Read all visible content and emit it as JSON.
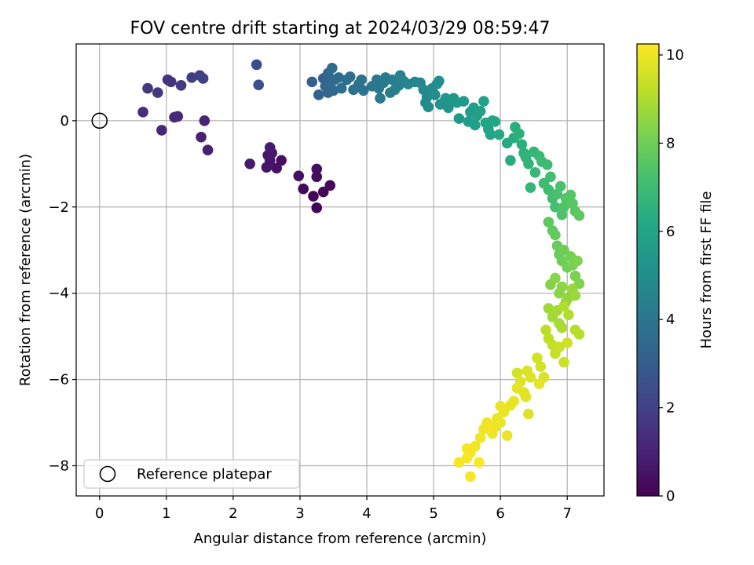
{
  "chart_data": {
    "type": "scatter",
    "title": "FOV centre drift starting at 2024/03/29 08:59:47",
    "xlabel": "Angular distance from reference (arcmin)",
    "ylabel": "Rotation from reference (arcmin)",
    "xlim": [
      -0.35,
      7.55
    ],
    "ylim": [
      -8.7,
      1.78
    ],
    "xticks": [
      0,
      1,
      2,
      3,
      4,
      5,
      6,
      7
    ],
    "xtick_labels": [
      "0",
      "1",
      "2",
      "3",
      "4",
      "5",
      "6",
      "7"
    ],
    "yticks": [
      -8,
      -6,
      -4,
      -2,
      0
    ],
    "ytick_labels": [
      "−8",
      "−6",
      "−4",
      "−2",
      "0"
    ],
    "grid": true,
    "legend": {
      "position": "lower-left",
      "entries": [
        "Reference platepar"
      ]
    },
    "reference_point": {
      "x": 0,
      "y": 0
    },
    "colorbar": {
      "label": "Hours from first FF file",
      "colormap": "viridis",
      "range": [
        0,
        10.25
      ],
      "ticks": [
        0,
        2,
        4,
        6,
        8,
        10
      ],
      "tick_labels": [
        "0",
        "2",
        "4",
        "6",
        "8",
        "10"
      ]
    },
    "points": [
      [
        3.25,
        -2.02,
        0.05
      ],
      [
        3.2,
        -1.75,
        0.1
      ],
      [
        3.35,
        -1.65,
        0.15
      ],
      [
        3.45,
        -1.5,
        0.2
      ],
      [
        3.05,
        -1.58,
        0.25
      ],
      [
        3.25,
        -1.3,
        0.3
      ],
      [
        3.25,
        -1.12,
        0.35
      ],
      [
        2.98,
        -1.28,
        0.4
      ],
      [
        2.72,
        -0.92,
        0.45
      ],
      [
        2.65,
        -1.1,
        0.5
      ],
      [
        2.5,
        -1.08,
        0.55
      ],
      [
        2.55,
        -0.92,
        0.6
      ],
      [
        2.52,
        -0.8,
        0.65
      ],
      [
        2.58,
        -0.75,
        0.7
      ],
      [
        2.55,
        -0.62,
        0.75
      ],
      [
        2.25,
        -1.0,
        0.8
      ],
      [
        1.62,
        -0.68,
        0.9
      ],
      [
        1.52,
        -0.38,
        0.95
      ],
      [
        1.57,
        0.0,
        1.05
      ],
      [
        0.93,
        -0.22,
        1.1
      ],
      [
        1.17,
        0.1,
        1.2
      ],
      [
        1.12,
        0.08,
        1.25
      ],
      [
        0.65,
        0.2,
        1.35
      ],
      [
        1.02,
        0.95,
        1.5
      ],
      [
        1.07,
        0.9,
        1.55
      ],
      [
        0.72,
        0.75,
        1.6
      ],
      [
        0.87,
        0.65,
        1.65
      ],
      [
        1.22,
        0.82,
        1.75
      ],
      [
        1.38,
        1.0,
        1.85
      ],
      [
        1.5,
        1.05,
        1.95
      ],
      [
        1.55,
        0.98,
        2.0
      ],
      [
        2.35,
        1.3,
        2.4
      ],
      [
        2.38,
        0.83,
        2.5
      ],
      [
        3.18,
        0.9,
        3.1
      ],
      [
        3.35,
        0.98,
        3.2
      ],
      [
        3.28,
        0.6,
        3.3
      ],
      [
        3.42,
        0.65,
        3.35
      ],
      [
        3.38,
        0.8,
        3.4
      ],
      [
        3.45,
        0.88,
        3.45
      ],
      [
        3.5,
        0.7,
        3.5
      ],
      [
        3.42,
        1.1,
        3.5
      ],
      [
        3.52,
        0.95,
        3.55
      ],
      [
        3.48,
        1.22,
        3.6
      ],
      [
        3.62,
        0.75,
        3.6
      ],
      [
        3.58,
        1.0,
        3.65
      ],
      [
        3.7,
        0.95,
        3.7
      ],
      [
        3.75,
        1.02,
        3.75
      ],
      [
        3.8,
        0.72,
        3.8
      ],
      [
        3.88,
        0.85,
        3.85
      ],
      [
        3.95,
        0.7,
        3.9
      ],
      [
        3.92,
        0.95,
        3.95
      ],
      [
        4.08,
        0.8,
        4.0
      ],
      [
        4.15,
        0.95,
        4.05
      ],
      [
        4.18,
        0.75,
        4.1
      ],
      [
        4.2,
        0.52,
        4.15
      ],
      [
        4.25,
        0.88,
        4.2
      ],
      [
        4.28,
        1.0,
        4.25
      ],
      [
        4.35,
        0.65,
        4.3
      ],
      [
        4.38,
        0.95,
        4.35
      ],
      [
        4.42,
        0.72,
        4.4
      ],
      [
        4.48,
        0.82,
        4.45
      ],
      [
        4.5,
        1.05,
        4.5
      ],
      [
        4.55,
        0.92,
        4.55
      ],
      [
        4.62,
        0.85,
        4.6
      ],
      [
        4.72,
        0.9,
        4.65
      ],
      [
        4.8,
        0.88,
        4.7
      ],
      [
        4.85,
        0.72,
        4.75
      ],
      [
        4.88,
        0.42,
        4.8
      ],
      [
        4.9,
        0.55,
        4.85
      ],
      [
        4.92,
        0.32,
        4.9
      ],
      [
        4.98,
        0.75,
        4.95
      ],
      [
        5.02,
        0.6,
        5.0
      ],
      [
        5.05,
        0.85,
        5.05
      ],
      [
        5.08,
        0.92,
        5.1
      ],
      [
        5.1,
        0.38,
        5.15
      ],
      [
        5.15,
        0.42,
        5.2
      ],
      [
        5.18,
        0.52,
        5.25
      ],
      [
        5.22,
        0.3,
        5.3
      ],
      [
        5.25,
        0.48,
        5.35
      ],
      [
        5.3,
        0.52,
        5.4
      ],
      [
        5.35,
        0.42,
        5.45
      ],
      [
        5.38,
        0.05,
        5.5
      ],
      [
        5.45,
        0.45,
        5.55
      ],
      [
        5.52,
        -0.02,
        5.6
      ],
      [
        5.55,
        0.2,
        5.65
      ],
      [
        5.6,
        0.3,
        5.7
      ],
      [
        5.65,
        0.12,
        5.75
      ],
      [
        5.62,
        -0.1,
        5.8
      ],
      [
        5.7,
        0.22,
        5.85
      ],
      [
        5.75,
        0.45,
        5.9
      ],
      [
        5.78,
        -0.05,
        5.95
      ],
      [
        5.82,
        -0.2,
        6.0
      ],
      [
        5.85,
        -0.32,
        6.05
      ],
      [
        5.88,
        0.0,
        6.1
      ],
      [
        5.92,
        -0.02,
        6.15
      ],
      [
        5.98,
        -0.32,
        6.2
      ],
      [
        6.1,
        -0.52,
        6.25
      ],
      [
        6.15,
        -0.92,
        6.3
      ],
      [
        6.2,
        -0.4,
        6.35
      ],
      [
        6.22,
        -0.15,
        6.4
      ],
      [
        6.28,
        -0.3,
        6.45
      ],
      [
        6.32,
        -0.55,
        6.5
      ],
      [
        6.35,
        -0.75,
        6.55
      ],
      [
        6.38,
        -0.85,
        6.6
      ],
      [
        6.42,
        -1.0,
        6.65
      ],
      [
        6.45,
        -1.55,
        6.7
      ],
      [
        6.5,
        -0.72,
        6.75
      ],
      [
        6.52,
        -1.2,
        6.8
      ],
      [
        6.58,
        -0.82,
        6.85
      ],
      [
        6.62,
        -0.95,
        6.9
      ],
      [
        6.65,
        -1.45,
        6.95
      ],
      [
        6.7,
        -1.02,
        7.0
      ],
      [
        6.72,
        -1.6,
        7.05
      ],
      [
        6.75,
        -1.3,
        7.1
      ],
      [
        6.78,
        -1.8,
        7.15
      ],
      [
        6.82,
        -2.0,
        7.2
      ],
      [
        6.85,
        -1.7,
        7.25
      ],
      [
        6.9,
        -1.52,
        7.3
      ],
      [
        6.92,
        -2.18,
        7.35
      ],
      [
        6.95,
        -2.0,
        7.4
      ],
      [
        6.98,
        -1.8,
        7.45
      ],
      [
        7.05,
        -1.72,
        7.5
      ],
      [
        7.08,
        -1.92,
        7.55
      ],
      [
        7.12,
        -2.1,
        7.6
      ],
      [
        7.18,
        -2.2,
        7.65
      ],
      [
        6.72,
        -2.35,
        7.7
      ],
      [
        6.78,
        -2.55,
        7.75
      ],
      [
        6.82,
        -2.65,
        7.8
      ],
      [
        6.85,
        -2.9,
        7.85
      ],
      [
        6.88,
        -3.1,
        7.9
      ],
      [
        6.92,
        -3.25,
        7.95
      ],
      [
        6.95,
        -3.0,
        8.0
      ],
      [
        7.0,
        -3.4,
        8.05
      ],
      [
        7.05,
        -3.15,
        8.1
      ],
      [
        7.08,
        -3.35,
        8.15
      ],
      [
        7.12,
        -3.6,
        8.2
      ],
      [
        7.15,
        -3.25,
        8.25
      ],
      [
        7.18,
        -3.78,
        8.3
      ],
      [
        6.75,
        -3.8,
        8.35
      ],
      [
        6.82,
        -3.65,
        8.4
      ],
      [
        6.88,
        -4.0,
        8.45
      ],
      [
        6.92,
        -3.85,
        8.5
      ],
      [
        6.98,
        -4.2,
        8.55
      ],
      [
        7.02,
        -4.1,
        8.6
      ],
      [
        7.08,
        -3.9,
        8.65
      ],
      [
        7.12,
        -4.05,
        8.7
      ],
      [
        6.72,
        -4.35,
        8.75
      ],
      [
        6.78,
        -4.55,
        8.8
      ],
      [
        6.85,
        -4.4,
        8.85
      ],
      [
        6.88,
        -4.7,
        8.9
      ],
      [
        6.92,
        -4.8,
        8.95
      ],
      [
        6.95,
        -4.3,
        9.0
      ],
      [
        7.02,
        -4.5,
        9.05
      ],
      [
        7.12,
        -4.85,
        9.1
      ],
      [
        7.18,
        -4.95,
        9.15
      ],
      [
        6.68,
        -4.85,
        9.2
      ],
      [
        6.72,
        -5.05,
        9.25
      ],
      [
        6.78,
        -5.2,
        9.3
      ],
      [
        6.82,
        -5.4,
        9.35
      ],
      [
        6.88,
        -5.25,
        9.4
      ],
      [
        6.95,
        -5.6,
        9.45
      ],
      [
        7.0,
        -5.15,
        9.5
      ],
      [
        6.55,
        -5.5,
        9.55
      ],
      [
        6.6,
        -5.7,
        9.6
      ],
      [
        6.65,
        -5.95,
        9.65
      ],
      [
        6.4,
        -5.8,
        9.7
      ],
      [
        6.45,
        -5.95,
        9.75
      ],
      [
        6.3,
        -6.05,
        9.78
      ],
      [
        6.35,
        -6.3,
        9.8
      ],
      [
        6.38,
        -6.4,
        9.82
      ],
      [
        6.25,
        -6.2,
        9.84
      ],
      [
        6.58,
        -6.1,
        9.86
      ],
      [
        6.2,
        -6.5,
        9.88
      ],
      [
        6.15,
        -6.6,
        9.9
      ],
      [
        6.05,
        -6.75,
        9.92
      ],
      [
        6.0,
        -6.62,
        9.94
      ],
      [
        5.95,
        -6.9,
        9.96
      ],
      [
        5.92,
        -7.1,
        9.98
      ],
      [
        5.88,
        -7.25,
        10.0
      ],
      [
        5.8,
        -7.0,
        10.02
      ],
      [
        5.75,
        -7.15,
        10.04
      ],
      [
        5.7,
        -7.35,
        10.06
      ],
      [
        5.62,
        -7.55,
        10.08
      ],
      [
        5.55,
        -7.7,
        10.1
      ],
      [
        5.5,
        -7.6,
        10.12
      ],
      [
        5.5,
        -7.82,
        10.14
      ],
      [
        5.38,
        -7.92,
        10.16
      ],
      [
        5.55,
        -8.25,
        10.18
      ],
      [
        5.68,
        -7.92,
        10.2
      ],
      [
        6.42,
        -6.8,
        9.7
      ],
      [
        6.25,
        -5.85,
        9.6
      ],
      [
        6.1,
        -7.3,
        9.95
      ],
      [
        6.0,
        -7.0,
        9.97
      ],
      [
        5.85,
        -7.15,
        10.05
      ]
    ]
  }
}
